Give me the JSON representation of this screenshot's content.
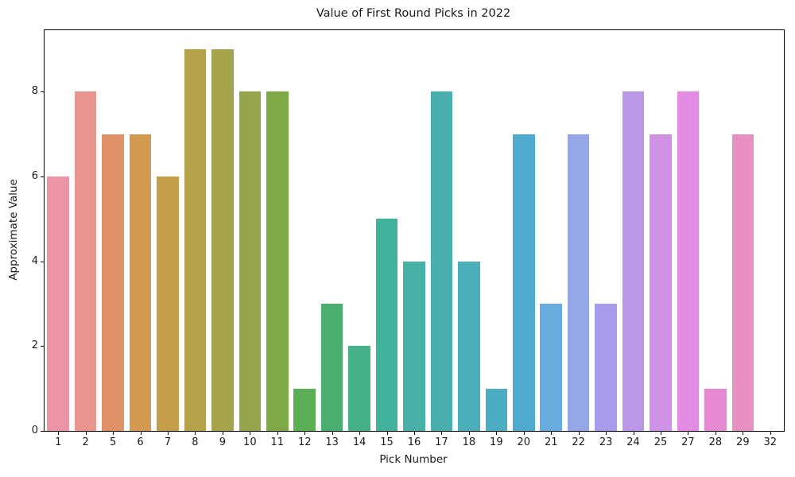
{
  "chart_data": {
    "type": "bar",
    "title": "Value of First Round Picks in 2022",
    "xlabel": "Pick Number",
    "ylabel": "Approximate Value",
    "categories": [
      "1",
      "2",
      "5",
      "6",
      "7",
      "8",
      "9",
      "10",
      "11",
      "12",
      "13",
      "14",
      "15",
      "16",
      "17",
      "18",
      "19",
      "20",
      "21",
      "22",
      "23",
      "24",
      "25",
      "27",
      "28",
      "29",
      "32"
    ],
    "values": [
      6,
      8,
      7,
      7,
      6,
      9,
      9,
      8,
      8,
      1,
      3,
      2,
      5,
      4,
      8,
      4,
      1,
      7,
      3,
      7,
      3,
      8,
      7,
      8,
      1,
      7,
      0
    ],
    "bar_colors": [
      "#ec95a6",
      "#e9968f",
      "#e09267",
      "#d29a50",
      "#c49e4b",
      "#b5a14a",
      "#a5a44a",
      "#94a54b",
      "#7fa847",
      "#5cae55",
      "#4aaf6e",
      "#46b088",
      "#41b29b",
      "#47b0a7",
      "#4baeae",
      "#4caebb",
      "#4aadc2",
      "#4fabcd",
      "#68ace0",
      "#96a7e7",
      "#a69ceb",
      "#bb97e8",
      "#cf92e5",
      "#e18ce2",
      "#e789d3",
      "#e890c1",
      "#eb93af"
    ],
    "yticks": [
      0,
      2,
      4,
      6,
      8
    ],
    "ylim": [
      0,
      9.45
    ],
    "bar_width_fraction": 0.8,
    "grid": false,
    "legend_position": "none",
    "text_color": "#1a1a1a",
    "spine_color": "#000000",
    "background_color": "#ffffff"
  }
}
